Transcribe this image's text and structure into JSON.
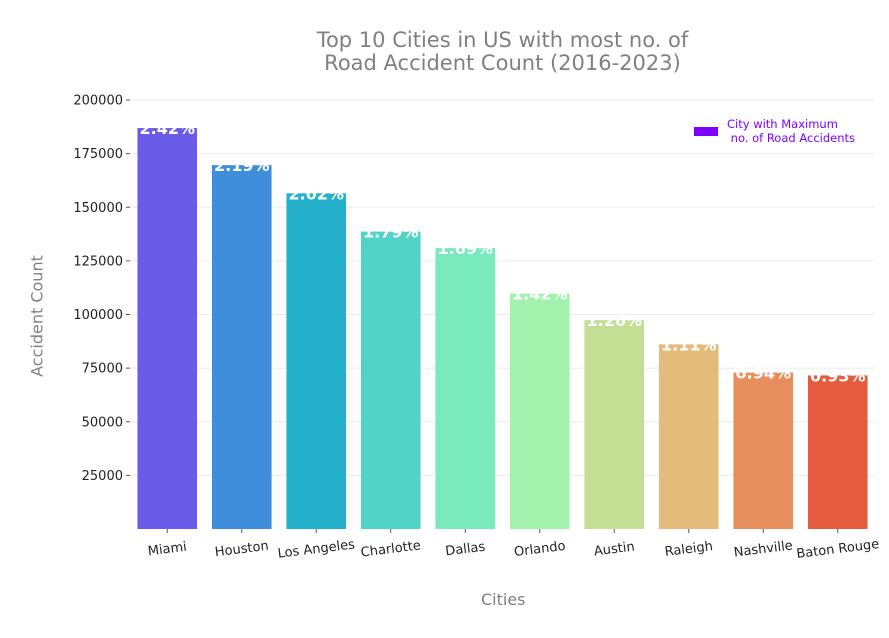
{
  "chart_data": {
    "type": "bar",
    "title_lines": [
      "Top 10 Cities in US with most no. of",
      "Road Accident Count (2016-2023)"
    ],
    "xlabel": "Cities",
    "ylabel": "Accident Count",
    "categories": [
      "Miami",
      "Houston",
      "Los Angeles",
      "Charlotte",
      "Dallas",
      "Orlando",
      "Austin",
      "Raleigh",
      "Nashville",
      "Baton Rouge"
    ],
    "values": [
      186917,
      169609,
      156491,
      138652,
      130939,
      109733,
      97359,
      86079,
      72930,
      71588
    ],
    "data_labels": [
      "2.42%",
      "2.19%",
      "2.02%",
      "1.79%",
      "1.69%",
      "1.42%",
      "1.26%",
      "1.11%",
      "0.94%",
      "0.93%"
    ],
    "colors": [
      "#6a5ce9",
      "#3e8edb",
      "#25b0cc",
      "#51d4c6",
      "#78eabb",
      "#a2f1ad",
      "#c4df94",
      "#e3bc7b",
      "#e78e5d",
      "#e45b3e"
    ],
    "yticks": [
      25000,
      50000,
      75000,
      100000,
      125000,
      150000,
      175000,
      200000
    ],
    "ytick_labels": [
      "25000",
      "50000",
      "75000",
      "100000",
      "125000",
      "150000",
      "175000",
      "200000"
    ],
    "ylim": [
      0,
      205000
    ],
    "grid": "horizontal",
    "legend": {
      "label": "City with Maximum\n no. of Road Accidents",
      "color": "#7f00ff",
      "position": "top-right"
    }
  }
}
